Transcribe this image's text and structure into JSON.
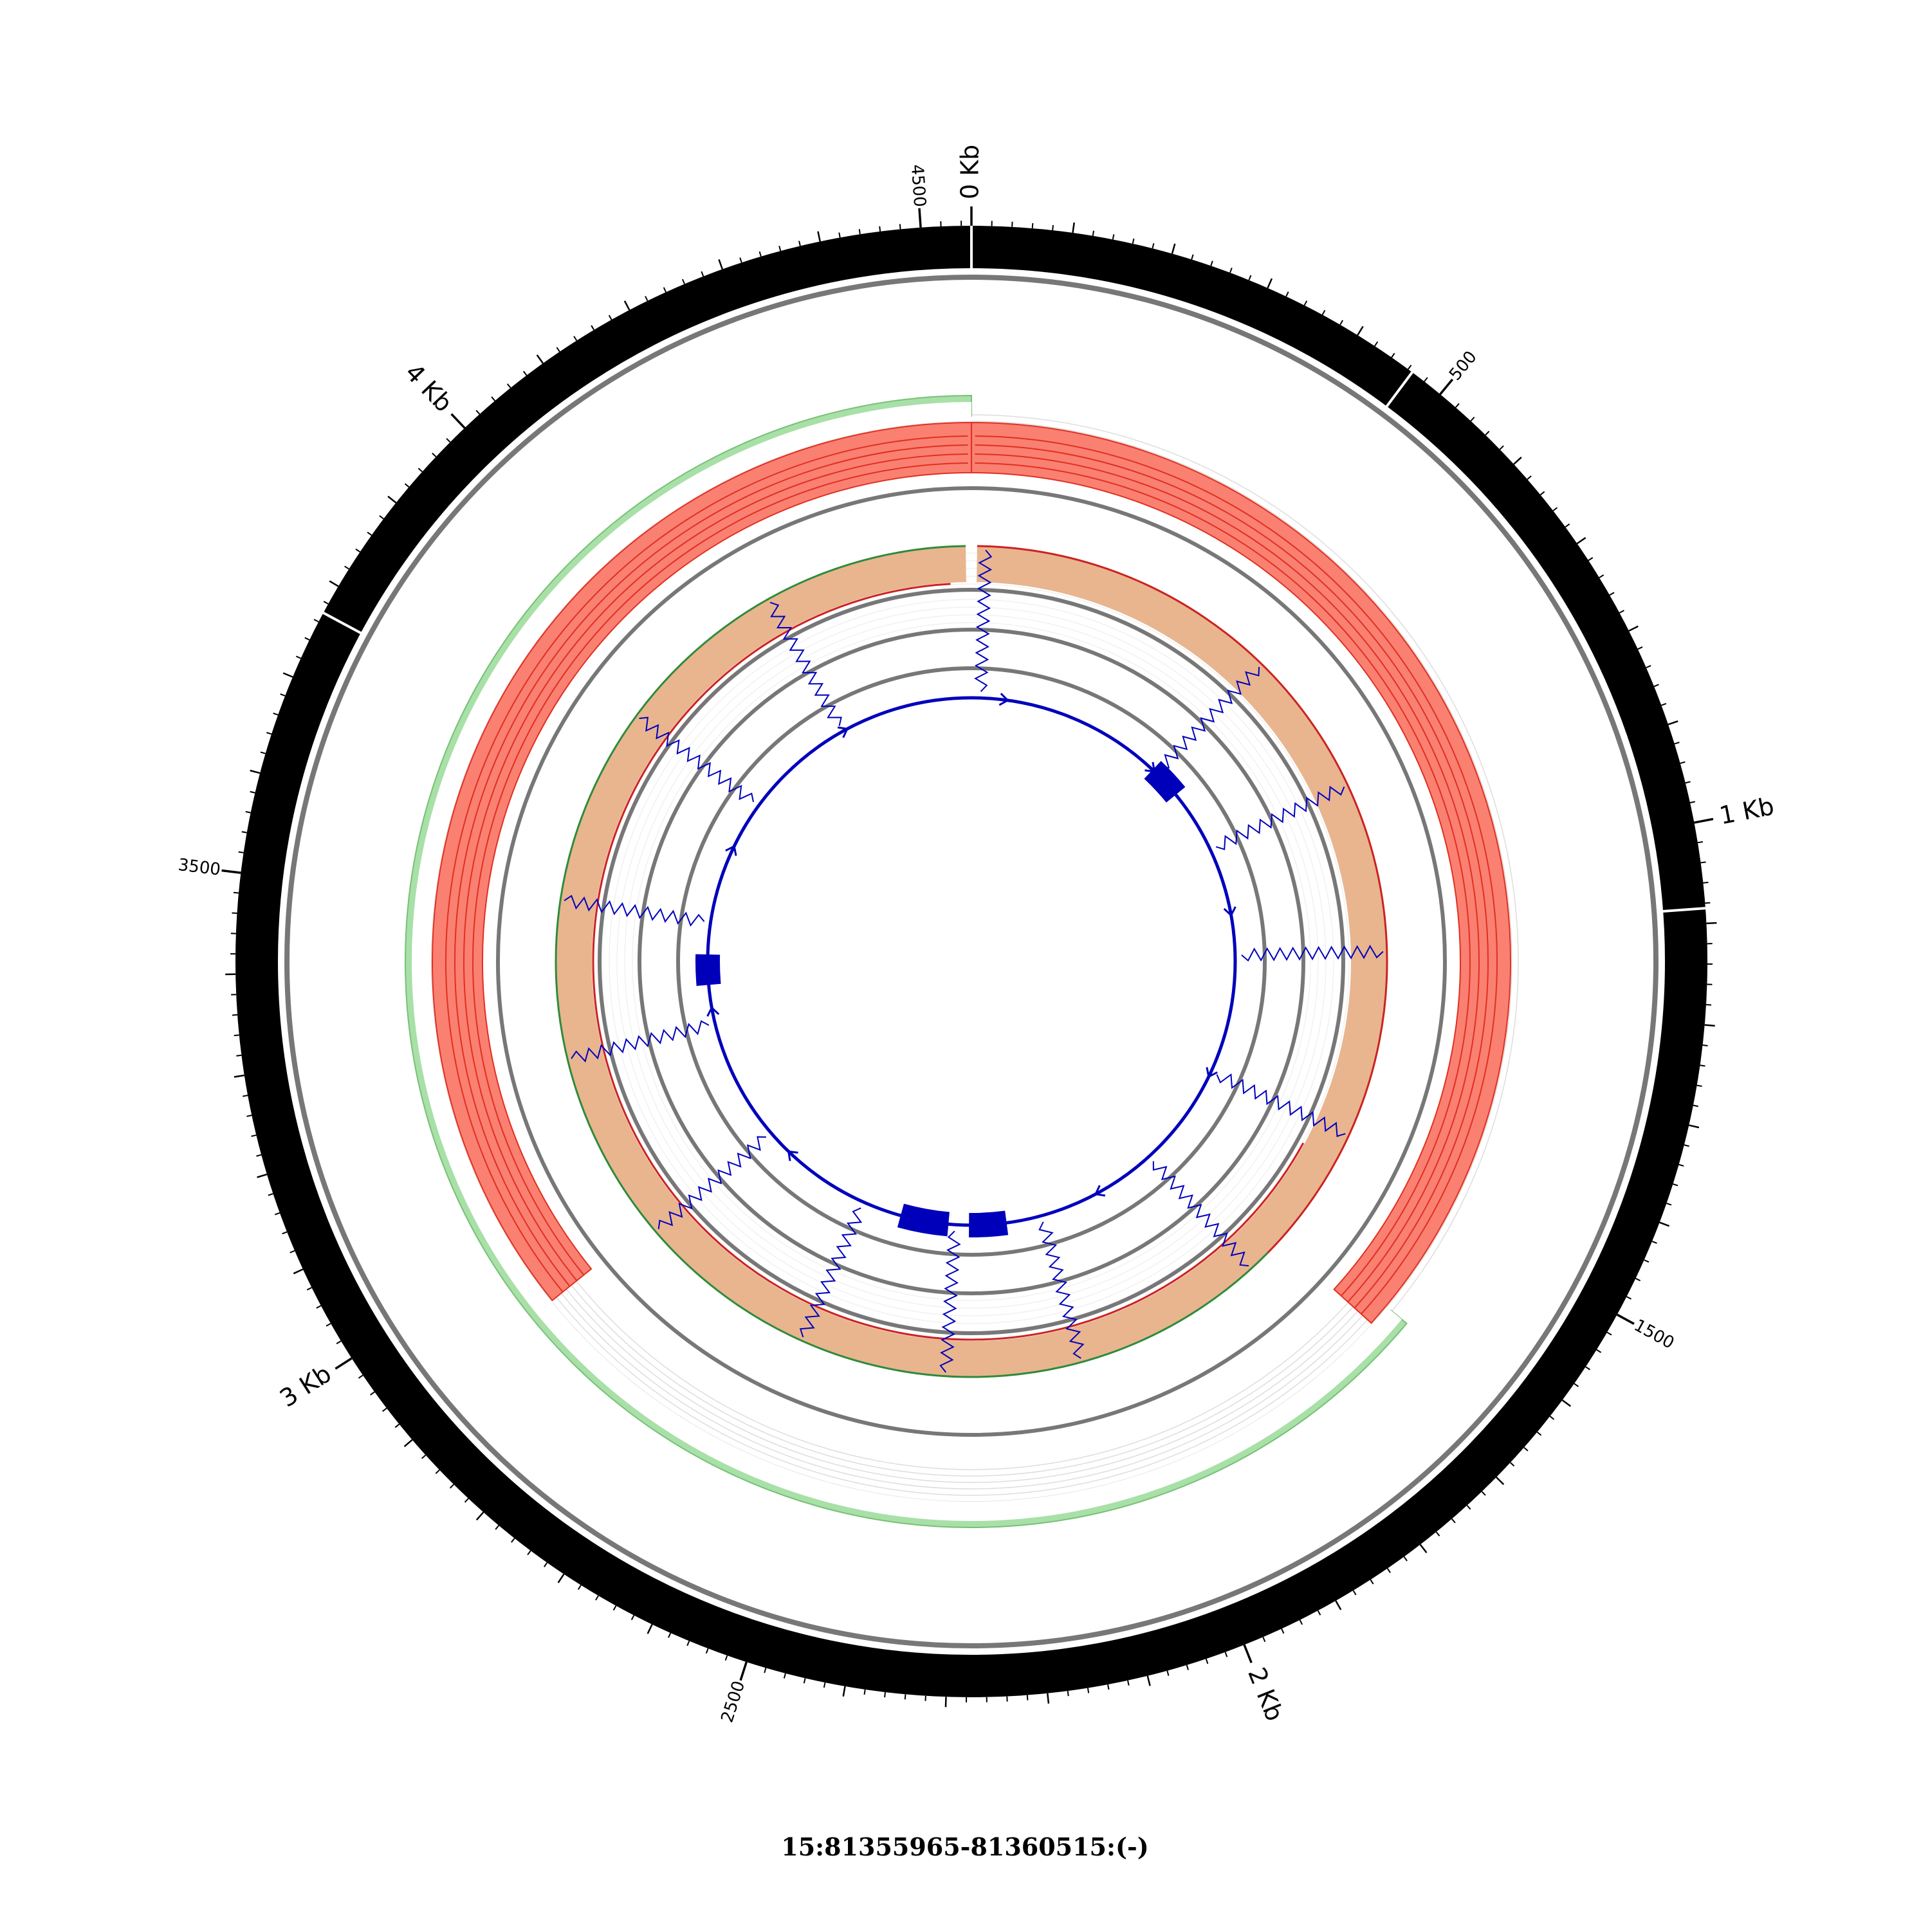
{
  "region": {
    "label": "15:81355965-81360515:(-)",
    "length_bp": 4550
  },
  "axis": {
    "major_labels": [
      {
        "bp": 0,
        "text": "0 Kb"
      },
      {
        "bp": 1000,
        "text": "1 Kb"
      },
      {
        "bp": 2000,
        "text": "2 Kb"
      },
      {
        "bp": 3000,
        "text": "3 Kb"
      },
      {
        "bp": 4000,
        "text": "4 Kb"
      }
    ],
    "minor_labels": [
      {
        "bp": 500,
        "text": "500"
      },
      {
        "bp": 1500,
        "text": "1500"
      },
      {
        "bp": 2500,
        "text": "2500"
      },
      {
        "bp": 3500,
        "text": "3500"
      },
      {
        "bp": 4500,
        "text": "4500"
      }
    ],
    "band_breaks_bp": [
      0,
      465,
      1085,
      3770
    ]
  },
  "colors": {
    "ideogram": "#000000",
    "track_line": "#777777",
    "coverage_fill": "#fa8072",
    "coverage_line": "#e03020",
    "coverage_back": "#a8e0a8",
    "density_fill": "#e8b58f",
    "density_top": "#cc2222",
    "density_bottom": "#2e8b3a",
    "transcript": "#0000bb",
    "grid": "#dddddd"
  },
  "transcript": {
    "exons": [
      {
        "start": 550,
        "end": 640
      },
      {
        "start": 2180,
        "end": 2280
      },
      {
        "start": 2340,
        "end": 2470
      },
      {
        "start": 3350,
        "end": 3430
      }
    ],
    "junction_angles_bp": [
      25,
      560,
      820,
      1120,
      1450,
      1740,
      2080,
      2320,
      2580,
      2900,
      3240,
      3520,
      3870,
      4180
    ]
  },
  "coverage": {
    "forward_arc_bp": [
      0,
      1670
    ],
    "reverse_arc_bp": [
      2920,
      4550
    ],
    "backing_arc_bp": [
      1640,
      4550
    ]
  }
}
